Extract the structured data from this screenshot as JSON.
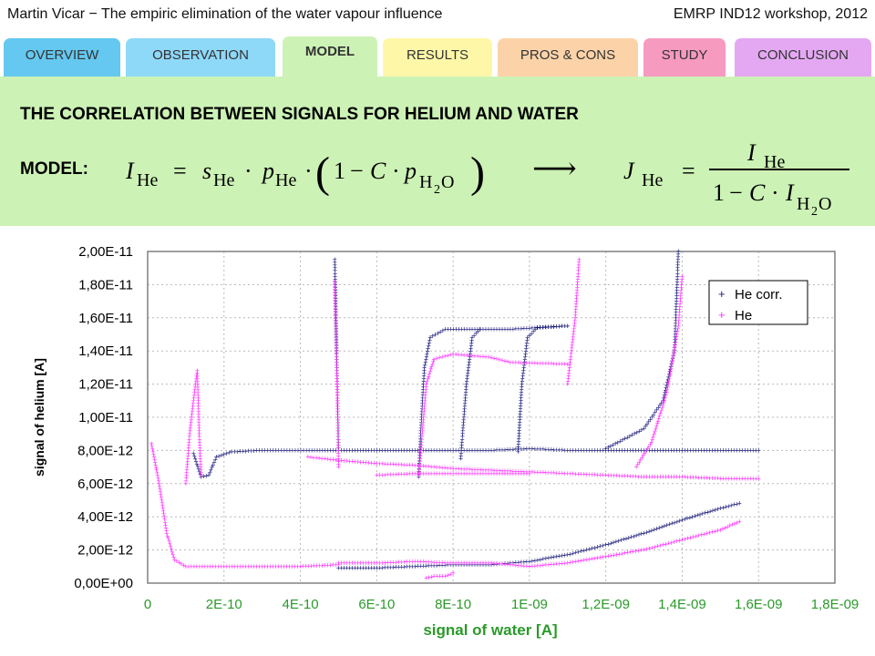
{
  "header": {
    "left": "Martin Vicar − The empiric elimination of the water vapour influence",
    "right": "EMRP IND12 workshop, 2012"
  },
  "tabs": [
    {
      "label": "OVERVIEW",
      "color": "#64c8f0"
    },
    {
      "label": "OBSERVATION",
      "color": "#8ed8f8"
    },
    {
      "label": "MODEL",
      "color": "#ccf2b5",
      "active": true
    },
    {
      "label": "RESULTS",
      "color": "#fff7a8"
    },
    {
      "label": "PROS & CONS",
      "color": "#fcd3a8"
    },
    {
      "label": "STUDY",
      "color": "#f79ac0"
    },
    {
      "label": "CONCLUSION",
      "color": "#e4a8f2"
    }
  ],
  "slide": {
    "title": "THE CORRELATION BETWEEN SIGNALS FOR HELIUM AND WATER",
    "model_label": "MODEL:"
  },
  "formula": {
    "I": "I",
    "He": "He",
    "eq": "=",
    "s": "s",
    "p": "p",
    "dot": "·",
    "one": "1",
    "minus": "−",
    "C": "C",
    "H": "H",
    "two": "2",
    "O": "O",
    "arrow": "⟶",
    "J": "J"
  },
  "colors": {
    "he_corr": "#1a1a7a",
    "he": "#ff33ff",
    "plot_border": "#808080",
    "xlabel": "#2a9a2a"
  },
  "chart_data": {
    "type": "scatter",
    "xlabel": "signal of water [A]",
    "ylabel": "signal of helium [A]",
    "xlim": [
      0,
      1.8e-09
    ],
    "ylim": [
      0,
      2e-11
    ],
    "x_ticks": [
      0,
      2e-10,
      4e-10,
      6e-10,
      8e-10,
      1e-09,
      1.2e-09,
      1.4e-09,
      1.6e-09,
      1.8e-09
    ],
    "x_tick_labels": [
      "0",
      "2E-10",
      "4E-10",
      "6E-10",
      "8E-10",
      "1E-09",
      "1,2E-09",
      "1,4E-09",
      "1,6E-09",
      "1,8E-09"
    ],
    "y_ticks": [
      0,
      2e-12,
      4e-12,
      6e-12,
      8e-12,
      1e-11,
      1.2e-11,
      1.4e-11,
      1.6e-11,
      1.8e-11,
      2e-11
    ],
    "y_tick_labels": [
      "0,00E+00",
      "2,00E-12",
      "4,00E-12",
      "6,00E-12",
      "8,00E-12",
      "1,00E-11",
      "1,20E-11",
      "1,40E-11",
      "1,60E-11",
      "1,80E-11",
      "2,00E-11"
    ],
    "grid": true,
    "legend": "top-right",
    "series": [
      {
        "name": "He corr.",
        "marker": "+",
        "segments": [
          [
            [
              1.2e-10,
              7.8e-12
            ],
            [
              1.4e-10,
              6.4e-12
            ],
            [
              1.6e-10,
              6.5e-12
            ],
            [
              1.8e-10,
              7.6e-12
            ],
            [
              2.2e-10,
              7.9e-12
            ],
            [
              3e-10,
              8e-12
            ],
            [
              4.3e-10,
              8e-12
            ],
            [
              5e-10,
              8e-12
            ],
            [
              6e-10,
              8e-12
            ],
            [
              7e-10,
              8e-12
            ],
            [
              8e-10,
              8e-12
            ],
            [
              9e-10,
              8e-12
            ],
            [
              1e-09,
              8.1e-12
            ],
            [
              1.1e-09,
              8e-12
            ],
            [
              1.2e-09,
              8e-12
            ],
            [
              1.3e-09,
              8e-12
            ],
            [
              1.4e-09,
              8e-12
            ],
            [
              1.5e-09,
              8e-12
            ],
            [
              1.6e-09,
              8e-12
            ]
          ],
          [
            [
              7.1e-10,
              6.4e-12
            ],
            [
              7.15e-10,
              9e-12
            ],
            [
              7.25e-10,
              1.3e-11
            ],
            [
              7.4e-10,
              1.48e-11
            ],
            [
              7.8e-10,
              1.53e-11
            ],
            [
              8.5e-10,
              1.53e-11
            ],
            [
              9.5e-10,
              1.53e-11
            ],
            [
              1.1e-09,
              1.55e-11
            ]
          ],
          [
            [
              8.2e-10,
              7.5e-12
            ],
            [
              8.35e-10,
              1.2e-11
            ],
            [
              8.5e-10,
              1.48e-11
            ],
            [
              8.7e-10,
              1.53e-11
            ]
          ],
          [
            [
              9.7e-10,
              7.9e-12
            ],
            [
              9.8e-10,
              1.2e-11
            ],
            [
              9.95e-10,
              1.48e-11
            ],
            [
              1.02e-09,
              1.54e-11
            ],
            [
              1.1e-09,
              1.55e-11
            ]
          ],
          [
            [
              5e-10,
              9e-13
            ],
            [
              6e-10,
              9e-13
            ],
            [
              7e-10,
              1e-12
            ],
            [
              8e-10,
              1.1e-12
            ],
            [
              9e-10,
              1.1e-12
            ],
            [
              1e-09,
              1.3e-12
            ],
            [
              1.1e-09,
              1.7e-12
            ],
            [
              1.2e-09,
              2.3e-12
            ],
            [
              1.3e-09,
              3e-12
            ],
            [
              1.4e-09,
              3.8e-12
            ],
            [
              1.5e-09,
              4.5e-12
            ],
            [
              1.55e-09,
              4.8e-12
            ]
          ],
          [
            [
              1.2e-09,
              8.1e-12
            ],
            [
              1.3e-09,
              9.3e-12
            ],
            [
              1.35e-09,
              1.1e-11
            ],
            [
              1.38e-09,
              1.4e-11
            ],
            [
              1.39e-09,
              2e-11
            ]
          ],
          [
            [
              4.9e-10,
              1.95e-11
            ],
            [
              4.95e-10,
              1.4e-11
            ],
            [
              5e-10,
              8e-12
            ]
          ]
        ]
      },
      {
        "name": "He",
        "marker": "+",
        "segments": [
          [
            [
              1e-11,
              8.4e-12
            ],
            [
              3e-11,
              6e-12
            ],
            [
              5e-11,
              3e-12
            ],
            [
              7e-11,
              1.4e-12
            ],
            [
              1e-10,
              1e-12
            ],
            [
              2e-10,
              1e-12
            ],
            [
              3e-10,
              1e-12
            ],
            [
              4e-10,
              1e-12
            ],
            [
              5e-10,
              1.1e-12
            ]
          ],
          [
            [
              1e-10,
              6e-12
            ],
            [
              1.1e-10,
              9e-12
            ],
            [
              1.2e-10,
              1.1e-11
            ],
            [
              1.3e-10,
              1.28e-11
            ],
            [
              1.35e-10,
              9e-12
            ],
            [
              1.4e-10,
              6.5e-12
            ]
          ],
          [
            [
              4.2e-10,
              7.6e-12
            ],
            [
              5e-10,
              7.4e-12
            ],
            [
              6e-10,
              7.2e-12
            ],
            [
              7e-10,
              7.1e-12
            ],
            [
              8e-10,
              6.9e-12
            ],
            [
              9e-10,
              6.8e-12
            ],
            [
              1e-09,
              6.7e-12
            ],
            [
              1.1e-09,
              6.6e-12
            ],
            [
              1.2e-09,
              6.5e-12
            ],
            [
              1.3e-09,
              6.4e-12
            ],
            [
              1.4e-09,
              6.4e-12
            ],
            [
              1.5e-09,
              6.3e-12
            ],
            [
              1.6e-09,
              6.3e-12
            ]
          ],
          [
            [
              6e-10,
              6.5e-12
            ],
            [
              7e-10,
              6.6e-12
            ],
            [
              8e-10,
              6.6e-12
            ],
            [
              9e-10,
              6.6e-12
            ],
            [
              1e-09,
              6.6e-12
            ]
          ],
          [
            [
              7.3e-10,
              3e-13
            ],
            [
              7.5e-10,
              4e-13
            ],
            [
              7.8e-10,
              4e-13
            ],
            [
              8e-10,
              6e-13
            ]
          ],
          [
            [
              7.1e-10,
              6.5e-12
            ],
            [
              7.3e-10,
              1.2e-11
            ],
            [
              7.5e-10,
              1.35e-11
            ],
            [
              8e-10,
              1.38e-11
            ],
            [
              9e-10,
              1.36e-11
            ],
            [
              9.5e-10,
              1.33e-11
            ],
            [
              1.1e-09,
              1.32e-11
            ]
          ],
          [
            [
              5e-10,
              1.2e-12
            ],
            [
              6e-10,
              1.2e-12
            ],
            [
              7e-10,
              1.3e-12
            ],
            [
              8e-10,
              1.2e-12
            ],
            [
              9e-10,
              1.2e-12
            ],
            [
              1e-09,
              1e-12
            ],
            [
              1.1e-09,
              1.2e-12
            ],
            [
              1.2e-09,
              1.6e-12
            ],
            [
              1.3e-09,
              2e-12
            ],
            [
              1.4e-09,
              2.6e-12
            ],
            [
              1.5e-09,
              3.2e-12
            ],
            [
              1.55e-09,
              3.7e-12
            ]
          ],
          [
            [
              1.28e-09,
              7e-12
            ],
            [
              1.32e-09,
              8.5e-12
            ],
            [
              1.36e-09,
              1.15e-11
            ],
            [
              1.39e-09,
              1.55e-11
            ],
            [
              1.4e-09,
              1.85e-11
            ]
          ],
          [
            [
              1.1e-09,
              1.2e-11
            ],
            [
              1.12e-09,
              1.6e-11
            ],
            [
              1.13e-09,
              1.95e-11
            ]
          ],
          [
            [
              4.9e-10,
              1.82e-11
            ],
            [
              4.95e-10,
              1.3e-11
            ],
            [
              5e-10,
              7e-12
            ]
          ]
        ]
      }
    ]
  }
}
